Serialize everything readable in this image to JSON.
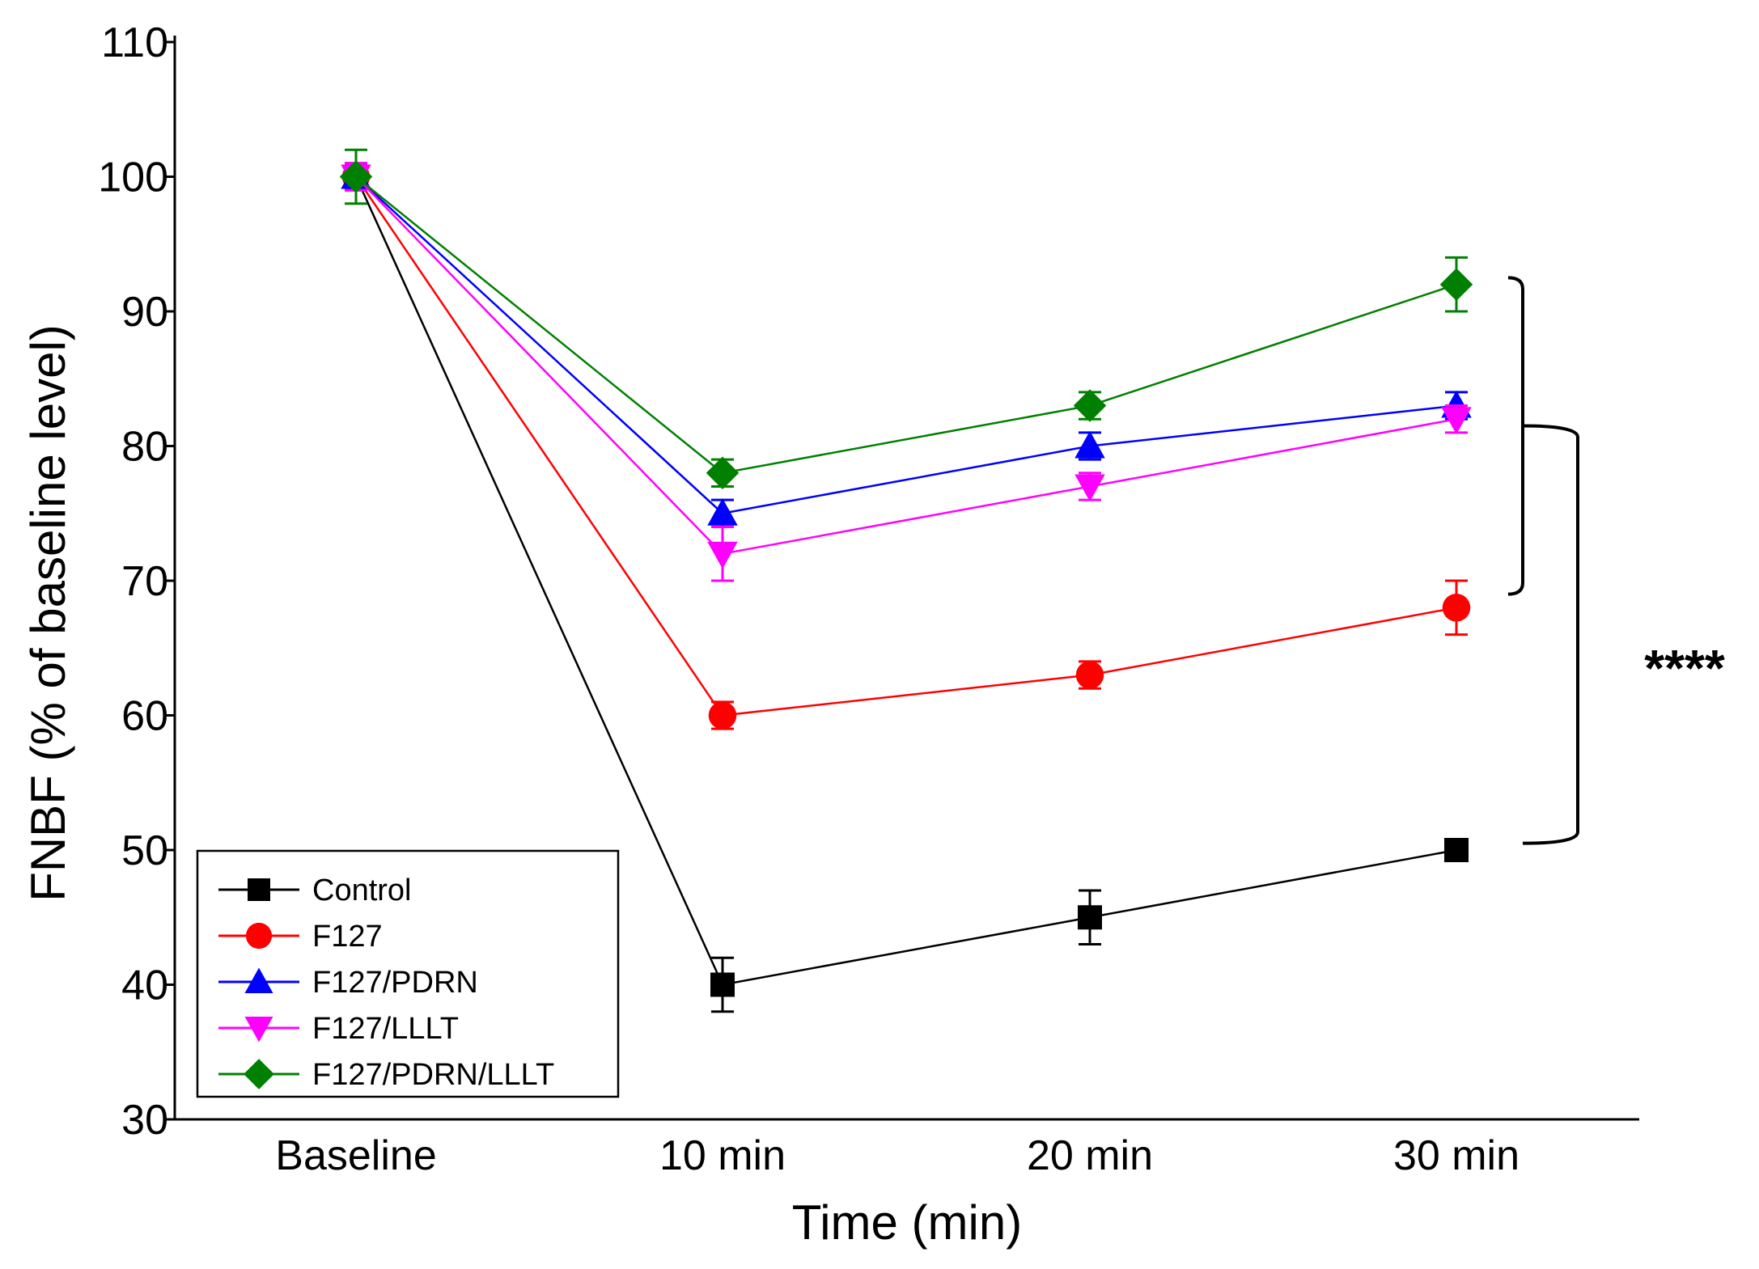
{
  "chart_data": {
    "type": "line",
    "title": "",
    "xlabel": "Time (min)",
    "ylabel": "FNBF (% of baseline level)",
    "categories": [
      "Baseline",
      "10 min",
      "20 min",
      "30 min"
    ],
    "ylim": [
      30,
      110
    ],
    "yticks": [
      30,
      40,
      50,
      60,
      70,
      80,
      90,
      100,
      110
    ],
    "legend_position": "bottom-left",
    "series": [
      {
        "name": "Control",
        "color": "#000000",
        "marker": "square",
        "values": [
          100,
          40,
          45,
          50
        ],
        "errors": [
          1.0,
          2.0,
          2.0,
          0.8
        ]
      },
      {
        "name": "F127",
        "color": "#ff0000",
        "marker": "circle",
        "values": [
          100,
          60,
          63,
          68
        ],
        "errors": [
          1.0,
          1.0,
          1.0,
          2.0
        ]
      },
      {
        "name": "F127/PDRN",
        "color": "#0000ff",
        "marker": "triangle-up",
        "values": [
          100,
          75,
          80,
          83
        ],
        "errors": [
          1.0,
          1.0,
          1.0,
          1.0
        ]
      },
      {
        "name": "F127/LLLT",
        "color": "#ff00ff",
        "marker": "triangle-down",
        "values": [
          100,
          72,
          77,
          82
        ],
        "errors": [
          1.0,
          2.0,
          1.0,
          1.0
        ]
      },
      {
        "name": "F127/PDRN/LLLT",
        "color": "#008000",
        "marker": "diamond",
        "values": [
          100,
          78,
          83,
          92
        ],
        "errors": [
          2.0,
          1.0,
          1.0,
          2.0
        ]
      }
    ],
    "annotations": [
      {
        "type": "bracket",
        "from_value": 69,
        "to_value": 92.5
      },
      {
        "type": "bracket",
        "from_value": 50.5,
        "to_value": 81.5
      },
      {
        "type": "text",
        "text": "****"
      }
    ]
  }
}
